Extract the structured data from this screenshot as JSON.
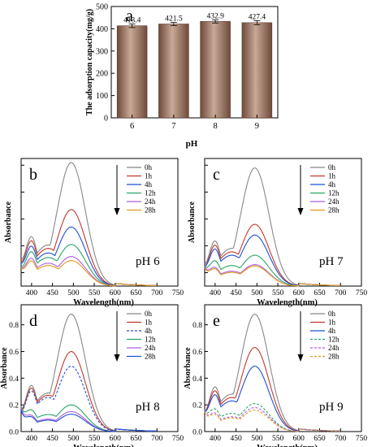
{
  "chart_data": [
    {
      "panel": "a",
      "type": "bar",
      "title": "",
      "xlabel": "pH",
      "ylabel": "The adsorption capacity(mg/g)",
      "categories": [
        "6",
        "7",
        "8",
        "9"
      ],
      "values": [
        413.4,
        421.5,
        432.9,
        427.4
      ],
      "value_labels": [
        "413.4",
        "421.5",
        "432.9",
        "427.4"
      ],
      "error": [
        8,
        7,
        7,
        9
      ],
      "ylim": [
        0,
        500
      ],
      "yticks": [
        "0",
        "100",
        "200",
        "300",
        "400",
        "500"
      ],
      "bar_color": "#c9a896",
      "bar_gradient_dark": "#6e4a3a",
      "grid": false
    },
    {
      "panel": "b",
      "type": "line",
      "annotation": "pH 6",
      "xlabel": "Wavelength(nm)",
      "ylabel": "Absorbance",
      "xlim": [
        375,
        750
      ],
      "xticks": [
        "400",
        "450",
        "500",
        "550",
        "600",
        "650",
        "700",
        "750"
      ],
      "legend_position": "top-right",
      "grid": false,
      "series": [
        {
          "name": "0h",
          "color": "#888888",
          "dashed": false,
          "peak": 0.92,
          "start": 0.48,
          "valley": 0.36
        },
        {
          "name": "1h",
          "color": "#c0392b",
          "dashed": false,
          "peak": 0.57,
          "start": 0.44,
          "valley": 0.33
        },
        {
          "name": "4h",
          "color": "#1f4fd6",
          "dashed": false,
          "peak": 0.44,
          "start": 0.4,
          "valley": 0.29
        },
        {
          "name": "12h",
          "color": "#27a566",
          "dashed": false,
          "peak": 0.31,
          "start": 0.34,
          "valley": 0.25
        },
        {
          "name": "24h",
          "color": "#b05fe0",
          "dashed": false,
          "peak": 0.22,
          "start": 0.3,
          "valley": 0.2
        },
        {
          "name": "28h",
          "color": "#e39a1a",
          "dashed": false,
          "peak": 0.19,
          "start": 0.28,
          "valley": 0.18
        }
      ]
    },
    {
      "panel": "c",
      "type": "line",
      "annotation": "pH 7",
      "xlabel": "Wavelength(nm)",
      "ylabel": "Absorbance",
      "xlim": [
        375,
        750
      ],
      "xticks": [
        "400",
        "450",
        "500",
        "550",
        "600",
        "650",
        "700",
        "750"
      ],
      "legend_position": "top-right",
      "grid": false,
      "series": [
        {
          "name": "0h",
          "color": "#888888",
          "dashed": false,
          "peak": 0.88,
          "start": 0.42,
          "valley": 0.33
        },
        {
          "name": "1h",
          "color": "#c0392b",
          "dashed": false,
          "peak": 0.46,
          "start": 0.38,
          "valley": 0.3
        },
        {
          "name": "4h",
          "color": "#1f4fd6",
          "dashed": false,
          "peak": 0.38,
          "start": 0.36,
          "valley": 0.27
        },
        {
          "name": "12h",
          "color": "#27a566",
          "dashed": false,
          "peak": 0.23,
          "start": 0.3,
          "valley": 0.18
        },
        {
          "name": "24h",
          "color": "#b05fe0",
          "dashed": false,
          "peak": 0.16,
          "start": 0.26,
          "valley": 0.13
        },
        {
          "name": "28h",
          "color": "#e39a1a",
          "dashed": false,
          "peak": 0.15,
          "start": 0.24,
          "valley": 0.12
        }
      ]
    },
    {
      "panel": "d",
      "type": "line",
      "annotation": "pH 8",
      "xlabel": "Wavelength(nm)",
      "ylabel": "Absorbance",
      "xlim": [
        375,
        750
      ],
      "xticks": [
        "400",
        "450",
        "500",
        "550",
        "600",
        "650",
        "700",
        "750"
      ],
      "yticks": [
        "0.0",
        "0.2",
        "0.4",
        "0.6",
        "0.8"
      ],
      "ylim": [
        0,
        0.95
      ],
      "legend_position": "top-right",
      "grid": false,
      "series": [
        {
          "name": "0h",
          "color": "#888888",
          "dashed": false,
          "peak": 0.88,
          "start": 0.42,
          "valley": 0.34
        },
        {
          "name": "1h",
          "color": "#c0392b",
          "dashed": false,
          "peak": 0.6,
          "start": 0.4,
          "valley": 0.32
        },
        {
          "name": "4h",
          "color": "#1f4fd6",
          "dashed": true,
          "peak": 0.49,
          "start": 0.38,
          "valley": 0.3
        },
        {
          "name": "12h",
          "color": "#27a566",
          "dashed": false,
          "peak": 0.2,
          "start": 0.32,
          "valley": 0.15
        },
        {
          "name": "24h",
          "color": "#b05fe0",
          "dashed": false,
          "peak": 0.15,
          "start": 0.28,
          "valley": 0.11
        },
        {
          "name": "28h",
          "color": "#1f4fd6",
          "dashed": false,
          "peak": 0.13,
          "start": 0.25,
          "valley": 0.1
        }
      ]
    },
    {
      "panel": "e",
      "type": "line",
      "annotation": "pH 9",
      "xlabel": "Wavelength(nm)",
      "ylabel": "Absorbance",
      "xlim": [
        375,
        750
      ],
      "xticks": [
        "400",
        "450",
        "500",
        "550",
        "600",
        "650",
        "700",
        "750"
      ],
      "yticks": [
        "0.0",
        "0.2",
        "0.4",
        "0.6",
        "0.8"
      ],
      "ylim": [
        0,
        0.95
      ],
      "legend_position": "top-right",
      "grid": false,
      "series": [
        {
          "name": "0h",
          "color": "#888888",
          "dashed": false,
          "peak": 0.88,
          "start": 0.4,
          "valley": 0.33
        },
        {
          "name": "1h",
          "color": "#c0392b",
          "dashed": false,
          "peak": 0.63,
          "start": 0.38,
          "valley": 0.3
        },
        {
          "name": "4h",
          "color": "#1f4fd6",
          "dashed": false,
          "peak": 0.49,
          "start": 0.36,
          "valley": 0.27
        },
        {
          "name": "12h",
          "color": "#27a566",
          "dashed": true,
          "peak": 0.21,
          "start": 0.3,
          "valley": 0.16
        },
        {
          "name": "24h",
          "color": "#b05fe0",
          "dashed": true,
          "peak": 0.18,
          "start": 0.27,
          "valley": 0.13
        },
        {
          "name": "28h",
          "color": "#e39a1a",
          "dashed": true,
          "peak": 0.16,
          "start": 0.25,
          "valley": 0.12
        }
      ]
    }
  ]
}
